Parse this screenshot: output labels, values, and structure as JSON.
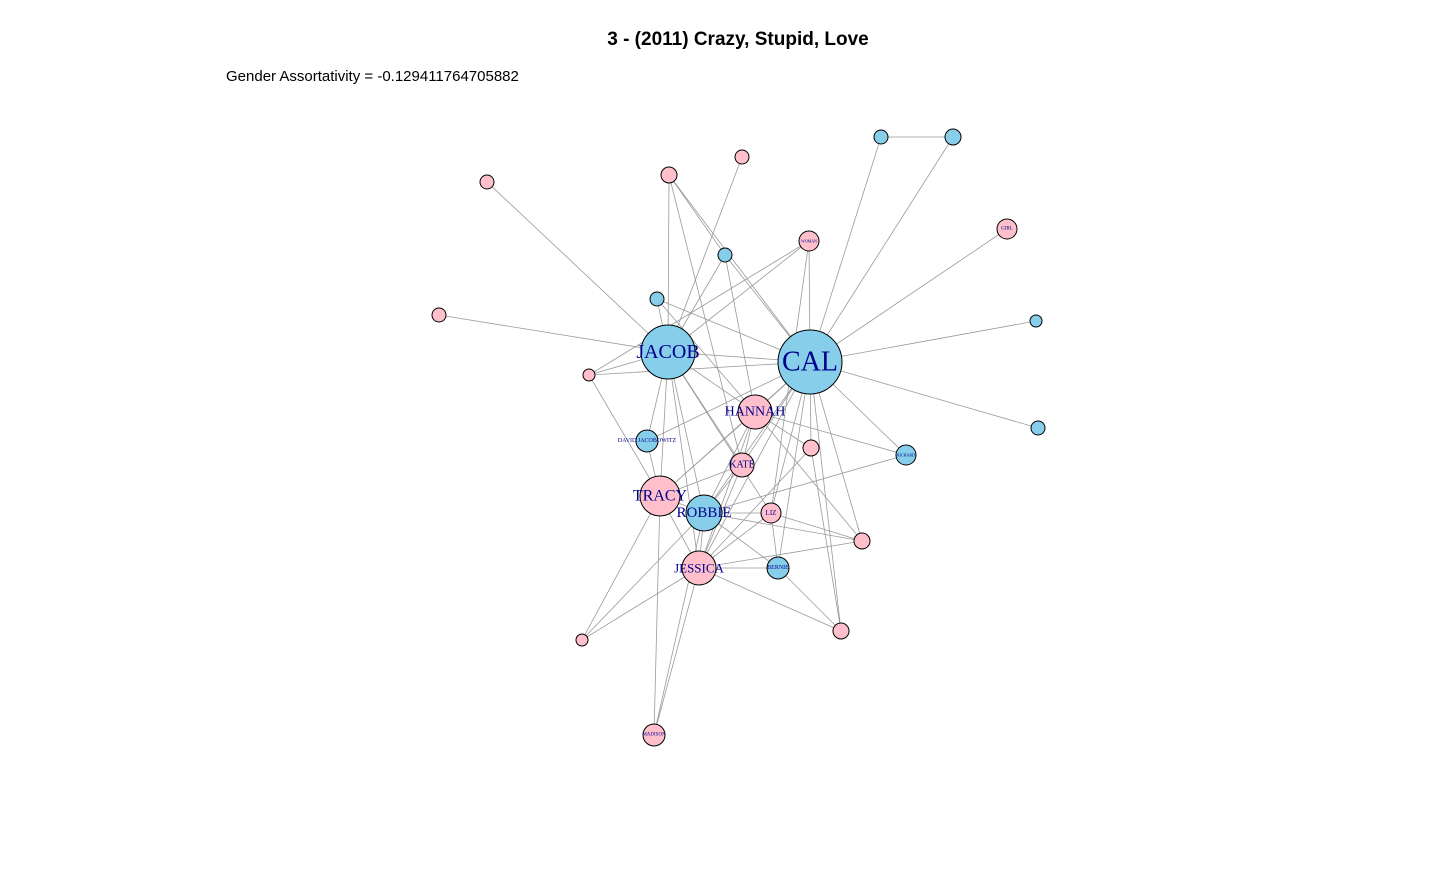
{
  "title": "3 - (2011) Crazy, Stupid, Love",
  "subtitle": "Gender Assortativity = -0.129411764705882",
  "colors": {
    "male": "#87CEEB",
    "female": "#FFC0CB",
    "edge": "#9A9A9A",
    "label": "#00008B",
    "stroke": "#000000"
  },
  "nodes": [
    {
      "id": "cal",
      "label": "CAL",
      "gender": "male"
    },
    {
      "id": "jacob",
      "label": "JACOB",
      "gender": "male"
    },
    {
      "id": "hannah",
      "label": "HANNAH",
      "gender": "female"
    },
    {
      "id": "tracy",
      "label": "TRACY",
      "gender": "female"
    },
    {
      "id": "robbie",
      "label": "ROBBIE",
      "gender": "male"
    },
    {
      "id": "jessica",
      "label": "JESSICA",
      "gender": "female"
    },
    {
      "id": "kate",
      "label": "KATE",
      "gender": "female"
    },
    {
      "id": "liz",
      "label": "LIZ",
      "gender": "female"
    },
    {
      "id": "bernie",
      "label": "BERNIE",
      "gender": "male"
    },
    {
      "id": "david",
      "label": "DAVID JACOBOWITZ",
      "gender": "male"
    },
    {
      "id": "richard",
      "label": "RICHARD",
      "gender": "male"
    },
    {
      "id": "woman",
      "label": "WOMAN",
      "gender": "female"
    },
    {
      "id": "girl",
      "label": "GIRL",
      "gender": "female"
    },
    {
      "id": "madison",
      "label": "MADISON",
      "gender": "female"
    },
    {
      "id": "f1",
      "label": "",
      "gender": "female"
    },
    {
      "id": "f2",
      "label": "",
      "gender": "female"
    },
    {
      "id": "f3",
      "label": "",
      "gender": "female"
    },
    {
      "id": "f4",
      "label": "",
      "gender": "female"
    },
    {
      "id": "f5",
      "label": "",
      "gender": "female"
    },
    {
      "id": "f6",
      "label": "",
      "gender": "female"
    },
    {
      "id": "f7",
      "label": "",
      "gender": "female"
    },
    {
      "id": "f8",
      "label": "",
      "gender": "female"
    },
    {
      "id": "f9",
      "label": "",
      "gender": "female"
    },
    {
      "id": "m1",
      "label": "",
      "gender": "male"
    },
    {
      "id": "m2",
      "label": "",
      "gender": "male"
    },
    {
      "id": "m3",
      "label": "",
      "gender": "male"
    },
    {
      "id": "m4",
      "label": "",
      "gender": "male"
    },
    {
      "id": "m5",
      "label": "",
      "gender": "male"
    },
    {
      "id": "m6",
      "label": "",
      "gender": "male"
    }
  ],
  "edges": [
    [
      "m1",
      "m2"
    ],
    [
      "m1",
      "cal"
    ],
    [
      "m2",
      "cal"
    ],
    [
      "cal",
      "girl"
    ],
    [
      "cal",
      "m5"
    ],
    [
      "cal",
      "m6"
    ],
    [
      "cal",
      "richard"
    ],
    [
      "cal",
      "woman"
    ],
    [
      "cal",
      "f2"
    ],
    [
      "cal",
      "jacob"
    ],
    [
      "cal",
      "hannah"
    ],
    [
      "cal",
      "kate"
    ],
    [
      "cal",
      "robbie"
    ],
    [
      "cal",
      "jessica"
    ],
    [
      "cal",
      "tracy"
    ],
    [
      "cal",
      "liz"
    ],
    [
      "cal",
      "bernie"
    ],
    [
      "cal",
      "f7"
    ],
    [
      "cal",
      "f8"
    ],
    [
      "cal",
      "f6"
    ],
    [
      "cal",
      "m3"
    ],
    [
      "cal",
      "m4"
    ],
    [
      "cal",
      "f5"
    ],
    [
      "cal",
      "david"
    ],
    [
      "jacob",
      "f1"
    ],
    [
      "jacob",
      "f3"
    ],
    [
      "jacob",
      "f4"
    ],
    [
      "jacob",
      "f5"
    ],
    [
      "jacob",
      "m3"
    ],
    [
      "jacob",
      "m4"
    ],
    [
      "jacob",
      "hannah"
    ],
    [
      "jacob",
      "tracy"
    ],
    [
      "jacob",
      "robbie"
    ],
    [
      "jacob",
      "jessica"
    ],
    [
      "jacob",
      "kate"
    ],
    [
      "jacob",
      "liz"
    ],
    [
      "jacob",
      "david"
    ],
    [
      "jacob",
      "woman"
    ],
    [
      "jacob",
      "f2"
    ],
    [
      "hannah",
      "kate"
    ],
    [
      "hannah",
      "tracy"
    ],
    [
      "hannah",
      "robbie"
    ],
    [
      "hannah",
      "jessica"
    ],
    [
      "hannah",
      "richard"
    ],
    [
      "hannah",
      "f6"
    ],
    [
      "hannah",
      "f7"
    ],
    [
      "hannah",
      "m3"
    ],
    [
      "hannah",
      "m4"
    ],
    [
      "kate",
      "robbie"
    ],
    [
      "kate",
      "jessica"
    ],
    [
      "kate",
      "tracy"
    ],
    [
      "kate",
      "f2"
    ],
    [
      "tracy",
      "robbie"
    ],
    [
      "tracy",
      "jessica"
    ],
    [
      "tracy",
      "f5"
    ],
    [
      "tracy",
      "f9"
    ],
    [
      "tracy",
      "madison"
    ],
    [
      "tracy",
      "david"
    ],
    [
      "robbie",
      "jessica"
    ],
    [
      "robbie",
      "liz"
    ],
    [
      "robbie",
      "bernie"
    ],
    [
      "robbie",
      "madison"
    ],
    [
      "robbie",
      "f9"
    ],
    [
      "robbie",
      "richard"
    ],
    [
      "robbie",
      "f7"
    ],
    [
      "jessica",
      "bernie"
    ],
    [
      "jessica",
      "liz"
    ],
    [
      "jessica",
      "f8"
    ],
    [
      "jessica",
      "madison"
    ],
    [
      "jessica",
      "f9"
    ],
    [
      "jessica",
      "f6"
    ],
    [
      "jessica",
      "f7"
    ],
    [
      "bernie",
      "f8"
    ],
    [
      "bernie",
      "liz"
    ],
    [
      "liz",
      "f7"
    ],
    [
      "f6",
      "f8"
    ],
    [
      "woman",
      "liz"
    ],
    [
      "woman",
      "f5"
    ],
    [
      "m3",
      "f2"
    ]
  ]
}
